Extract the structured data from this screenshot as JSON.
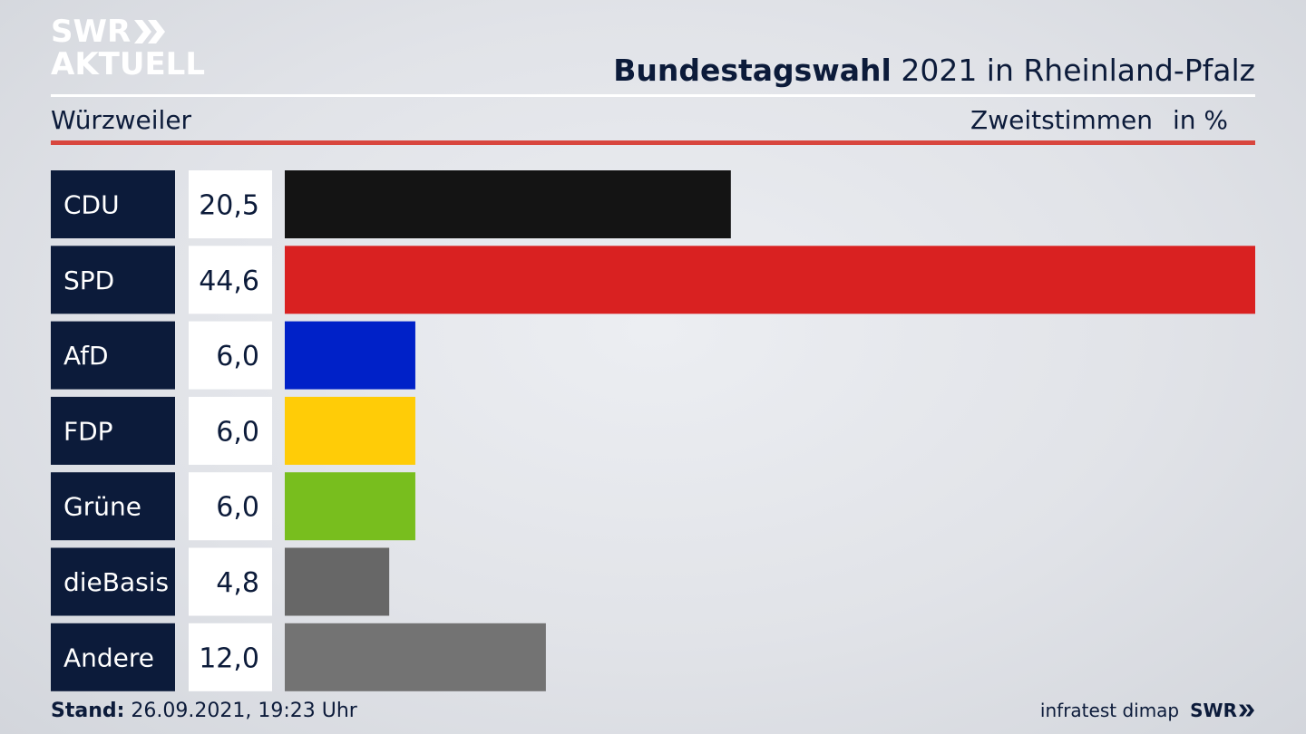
{
  "logo": {
    "line1": "SWR",
    "line2": "AKTUELL"
  },
  "header": {
    "title_bold": "Bundestagswahl",
    "title_rest": " 2021 in Rheinland-Pfalz",
    "region": "Würzweiler",
    "measure": "Zweitstimmen",
    "unit": "in %"
  },
  "chart_data": {
    "type": "bar",
    "orientation": "horizontal",
    "categories": [
      "CDU",
      "SPD",
      "AfD",
      "FDP",
      "Grüne",
      "dieBasis",
      "Andere"
    ],
    "values": [
      20.5,
      44.6,
      6.0,
      6.0,
      6.0,
      4.8,
      12.0
    ],
    "value_labels": [
      "20,5",
      "44,6",
      "6,0",
      "6,0",
      "6,0",
      "4,8",
      "12,0"
    ],
    "colors": [
      "#141414",
      "#d92121",
      "#0021c8",
      "#ffcc07",
      "#78be1e",
      "#676767",
      "#737373"
    ],
    "label_bg": "#0c1b3a",
    "value_bg": "#ffffff"
  },
  "footer": {
    "stand_label": "Stand:",
    "stand_value": " 26.09.2021, 19:23 Uhr",
    "source": "infratest dimap",
    "brand": "SWR"
  }
}
